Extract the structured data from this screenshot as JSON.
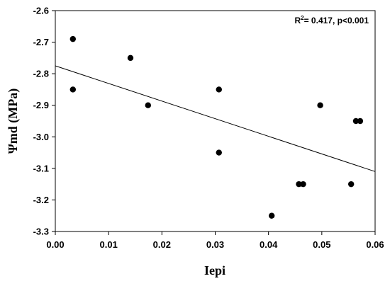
{
  "chart_data": {
    "type": "scatter",
    "xlabel": "Iepi",
    "ylabel": "Ψmd (MPa)",
    "xlim": [
      0.0,
      0.06
    ],
    "ylim": [
      -3.3,
      -2.6
    ],
    "x_ticks": [
      "0.00",
      "0.01",
      "0.02",
      "0.03",
      "0.04",
      "0.05",
      "0.06"
    ],
    "y_ticks": [
      "-2.6",
      "-2.7",
      "-2.8",
      "-2.9",
      "-3.0",
      "-3.1",
      "-3.2",
      "-3.3"
    ],
    "grid": false,
    "points": [
      {
        "x": 0.0033,
        "y": -2.69
      },
      {
        "x": 0.0033,
        "y": -2.85
      },
      {
        "x": 0.0141,
        "y": -2.75
      },
      {
        "x": 0.0174,
        "y": -2.9
      },
      {
        "x": 0.0307,
        "y": -2.85
      },
      {
        "x": 0.0307,
        "y": -3.05
      },
      {
        "x": 0.0406,
        "y": -3.25
      },
      {
        "x": 0.0457,
        "y": -3.15
      },
      {
        "x": 0.0465,
        "y": -3.15
      },
      {
        "x": 0.0497,
        "y": -2.9
      },
      {
        "x": 0.0555,
        "y": -3.15
      },
      {
        "x": 0.0564,
        "y": -2.95
      },
      {
        "x": 0.0572,
        "y": -2.95
      }
    ],
    "regression_line": {
      "x": [
        0.0,
        0.06
      ],
      "y": [
        -2.775,
        -3.11
      ]
    },
    "annotation": {
      "r2_base": "R",
      "r2_sup": "2",
      "text": "= 0.417, p<0.001"
    }
  }
}
